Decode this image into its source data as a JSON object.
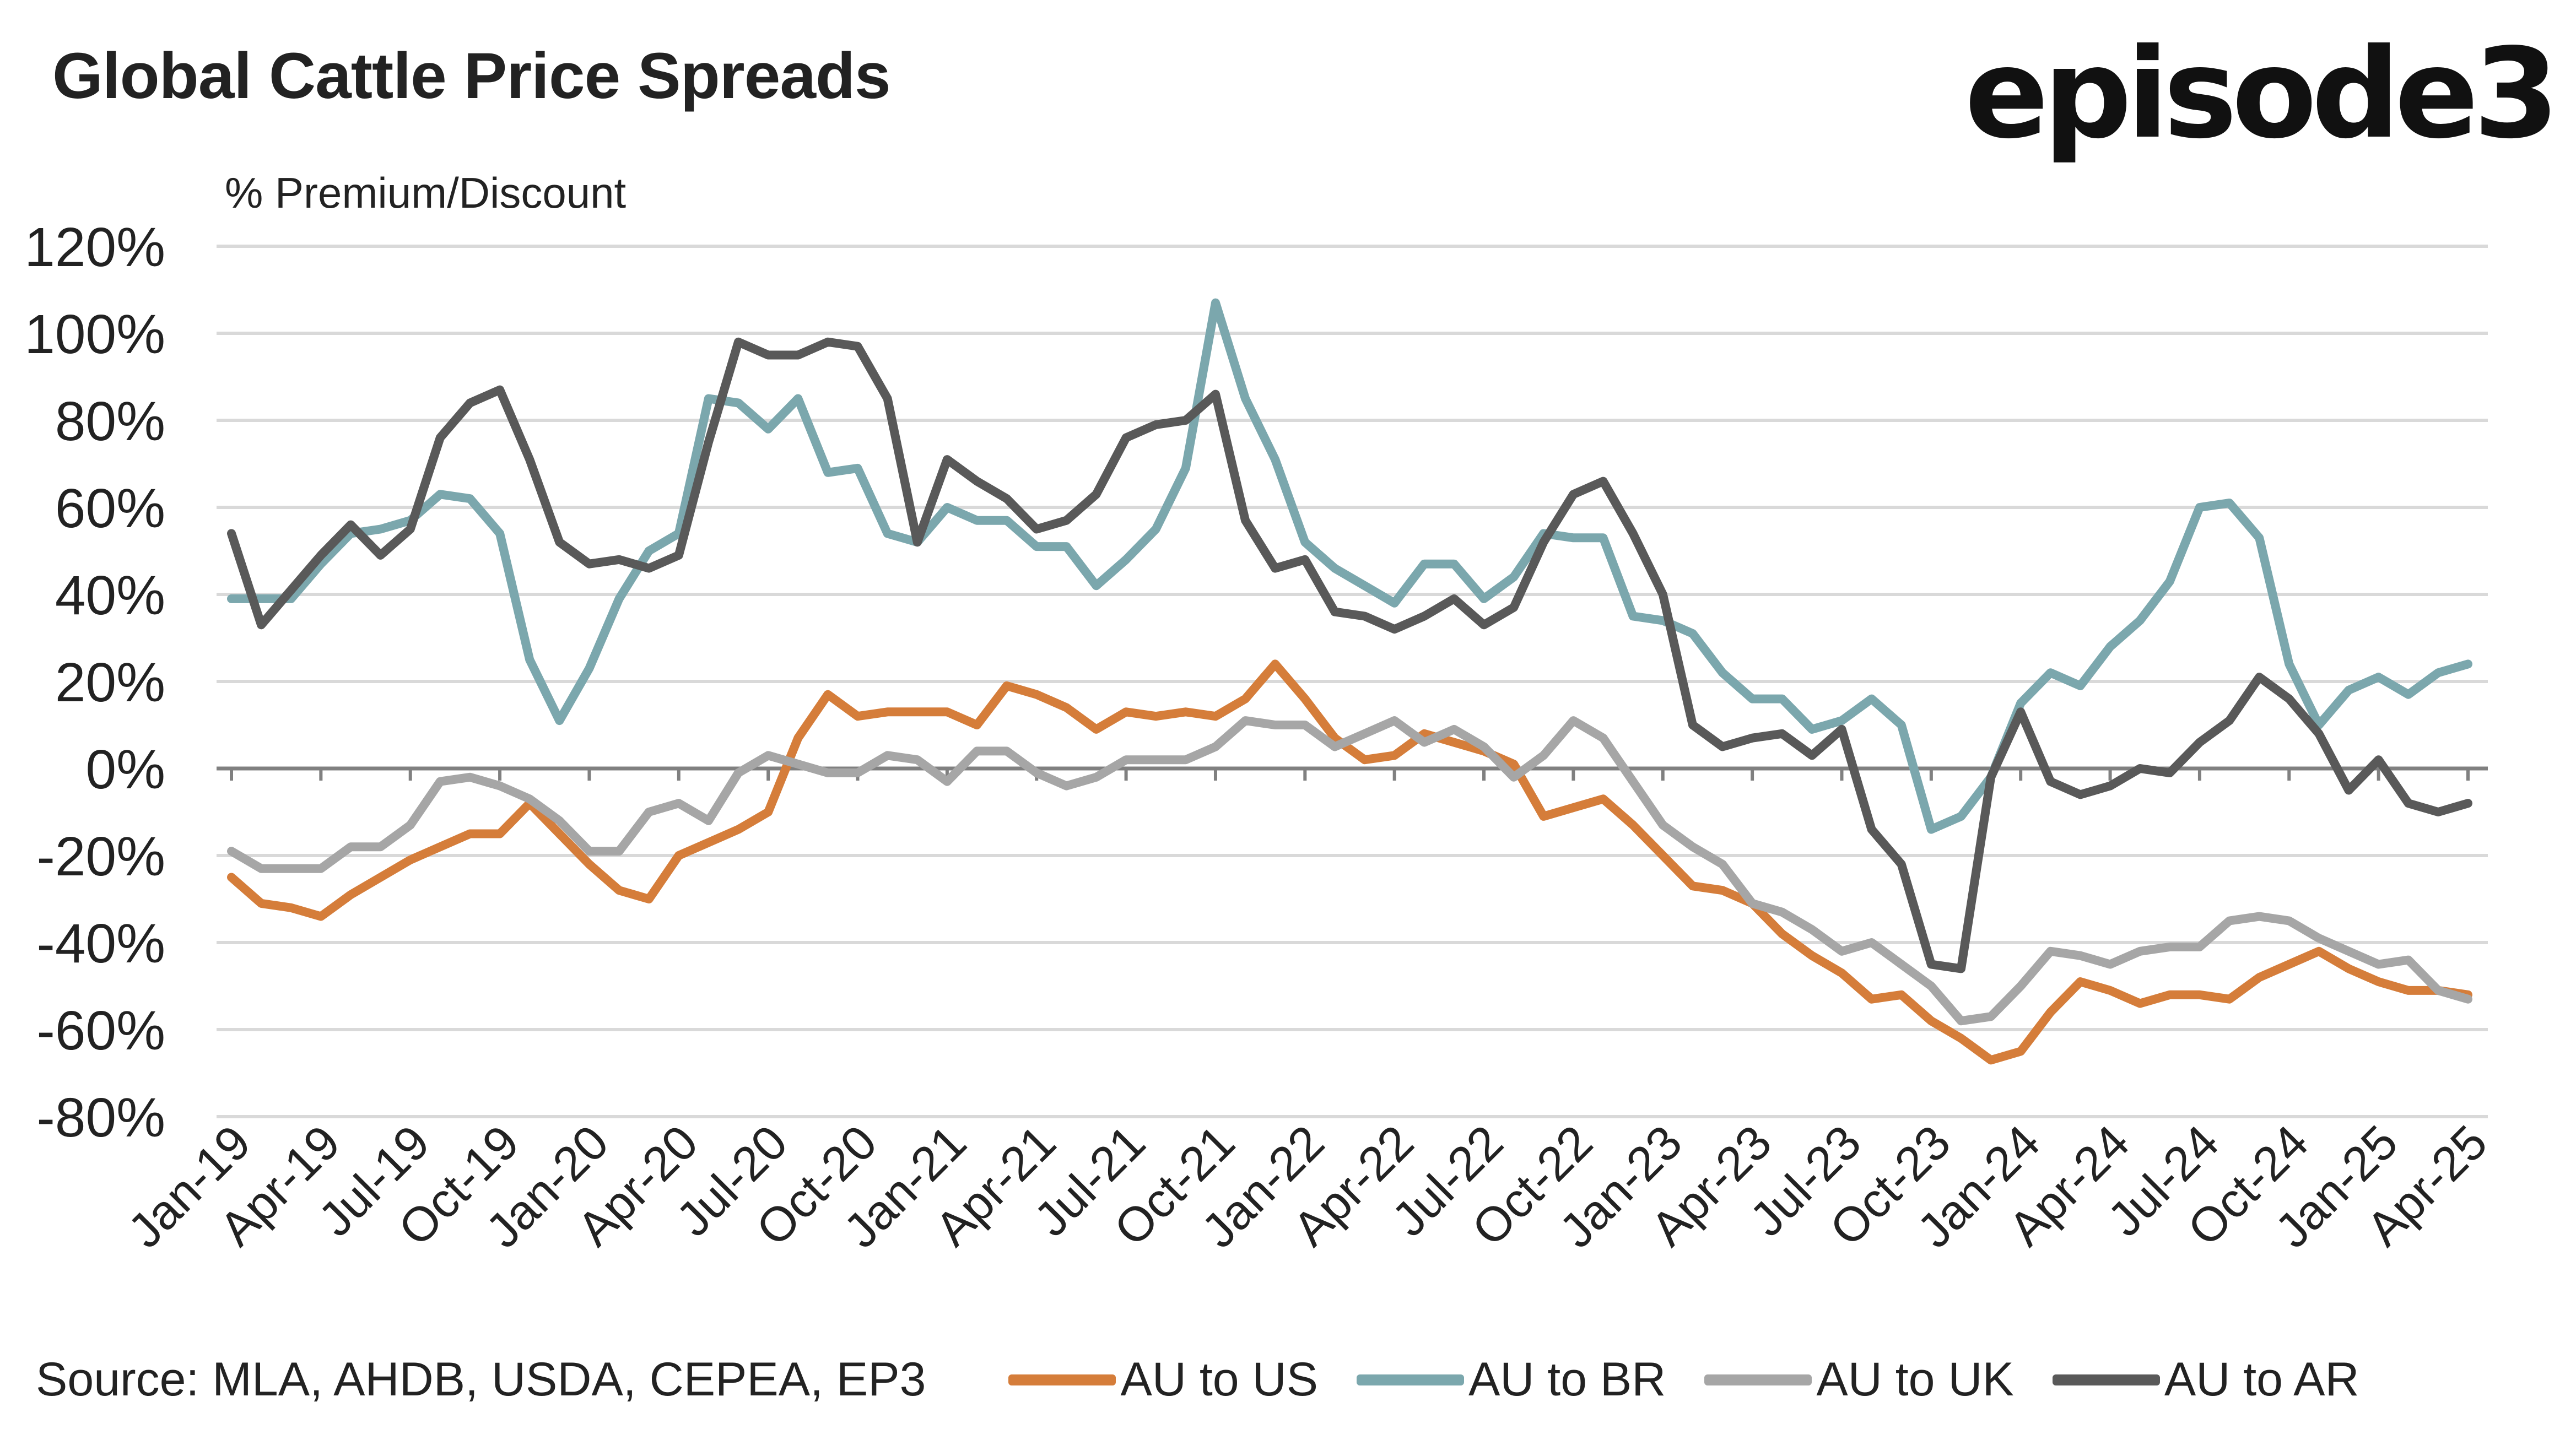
{
  "header": {
    "title": "Global Cattle Price Spreads",
    "logo": "episode3"
  },
  "footer": {
    "source": "Source:  MLA, AHDB, USDA, CEPEA, EP3"
  },
  "chart_data": {
    "type": "line",
    "title": "Global Cattle Price Spreads",
    "ylabel": "% Premium/Discount",
    "xlabel": "",
    "ylim": [
      -80,
      120
    ],
    "y_ticks": [
      "120%",
      "100%",
      "80%",
      "60%",
      "40%",
      "20%",
      "0%",
      "-20%",
      "-40%",
      "-60%",
      "-80%"
    ],
    "y_tick_values": [
      120,
      100,
      80,
      60,
      40,
      20,
      0,
      -20,
      -40,
      -60,
      -80
    ],
    "grid": true,
    "legend_position": "bottom",
    "x_tick_labels": [
      "Jan-19",
      "Apr-19",
      "Jul-19",
      "Oct-19",
      "Jan-20",
      "Apr-20",
      "Jul-20",
      "Oct-20",
      "Jan-21",
      "Apr-21",
      "Jul-21",
      "Oct-21",
      "Jan-22",
      "Apr-22",
      "Jul-22",
      "Oct-22",
      "Jan-23",
      "Apr-23",
      "Jul-23",
      "Oct-23",
      "Jan-24",
      "Apr-24",
      "Jul-24",
      "Oct-24",
      "Jan-25",
      "Apr-25"
    ],
    "x": [
      "Jan-19",
      "Feb-19",
      "Mar-19",
      "Apr-19",
      "May-19",
      "Jun-19",
      "Jul-19",
      "Aug-19",
      "Sep-19",
      "Oct-19",
      "Nov-19",
      "Dec-19",
      "Jan-20",
      "Feb-20",
      "Mar-20",
      "Apr-20",
      "May-20",
      "Jun-20",
      "Jul-20",
      "Aug-20",
      "Sep-20",
      "Oct-20",
      "Nov-20",
      "Dec-20",
      "Jan-21",
      "Feb-21",
      "Mar-21",
      "Apr-21",
      "May-21",
      "Jun-21",
      "Jul-21",
      "Aug-21",
      "Sep-21",
      "Oct-21",
      "Nov-21",
      "Dec-21",
      "Jan-22",
      "Feb-22",
      "Mar-22",
      "Apr-22",
      "May-22",
      "Jun-22",
      "Jul-22",
      "Aug-22",
      "Sep-22",
      "Oct-22",
      "Nov-22",
      "Dec-22",
      "Jan-23",
      "Feb-23",
      "Mar-23",
      "Apr-23",
      "May-23",
      "Jun-23",
      "Jul-23",
      "Aug-23",
      "Sep-23",
      "Oct-23",
      "Nov-23",
      "Dec-23",
      "Jan-24",
      "Feb-24",
      "Mar-24",
      "Apr-24",
      "May-24",
      "Jun-24",
      "Jul-24",
      "Aug-24",
      "Sep-24",
      "Oct-24",
      "Nov-24",
      "Dec-24",
      "Jan-25",
      "Feb-25",
      "Mar-25",
      "Apr-25"
    ],
    "series": [
      {
        "name": "AU to US",
        "color": "#D57D3A",
        "values": [
          -25,
          -31,
          -32,
          -34,
          -29,
          -25,
          -21,
          -18,
          -15,
          -15,
          -8,
          -15,
          -22,
          -28,
          -30,
          -20,
          -17,
          -14,
          -10,
          7,
          17,
          12,
          13,
          13,
          13,
          10,
          19,
          17,
          14,
          9,
          13,
          12,
          13,
          12,
          16,
          24,
          16,
          7,
          2,
          3,
          8,
          6,
          4,
          1,
          -11,
          -9,
          -7,
          -13,
          -20,
          -27,
          -28,
          -31,
          -38,
          -43,
          -47,
          -53,
          -52,
          -58,
          -62,
          -67,
          -65,
          -56,
          -49,
          -51,
          -54,
          -52,
          -52,
          -53,
          -48,
          -45,
          -42,
          -46,
          -49,
          -51,
          -51,
          -52
        ]
      },
      {
        "name": "AU to BR",
        "color": "#7BA7AD",
        "values": [
          39,
          39,
          39,
          47,
          54,
          55,
          57,
          63,
          62,
          54,
          25,
          11,
          23,
          39,
          50,
          54,
          85,
          84,
          78,
          85,
          68,
          69,
          54,
          52,
          60,
          57,
          57,
          51,
          51,
          42,
          48,
          55,
          69,
          107,
          85,
          71,
          52,
          46,
          42,
          38,
          47,
          47,
          39,
          44,
          54,
          53,
          53,
          35,
          34,
          31,
          22,
          16,
          16,
          9,
          11,
          16,
          10,
          -14,
          -11,
          -2,
          15,
          22,
          19,
          28,
          34,
          43,
          60,
          61,
          53,
          24,
          10,
          18,
          21,
          17,
          22,
          24
        ]
      },
      {
        "name": "AU to UK",
        "color": "#A6A6A6",
        "values": [
          -19,
          -23,
          -23,
          -23,
          -18,
          -18,
          -13,
          -3,
          -2,
          -4,
          -7,
          -12,
          -19,
          -19,
          -10,
          -8,
          -12,
          -1,
          3,
          1,
          -1,
          -1,
          3,
          2,
          -3,
          4,
          4,
          -1,
          -4,
          -2,
          2,
          2,
          2,
          5,
          11,
          10,
          10,
          5,
          8,
          11,
          6,
          9,
          5,
          -2,
          3,
          11,
          7,
          -3,
          -13,
          -18,
          -22,
          -31,
          -33,
          -37,
          -42,
          -40,
          -45,
          -50,
          -58,
          -57,
          -50,
          -42,
          -43,
          -45,
          -42,
          -41,
          -41,
          -35,
          -34,
          -35,
          -39,
          -42,
          -45,
          -44,
          -51,
          -53
        ]
      },
      {
        "name": "AU to AR",
        "color": "#595959",
        "values": [
          54,
          33,
          41,
          49,
          56,
          49,
          55,
          76,
          84,
          87,
          71,
          52,
          47,
          48,
          46,
          49,
          75,
          98,
          95,
          95,
          98,
          97,
          85,
          52,
          71,
          66,
          62,
          55,
          57,
          63,
          76,
          79,
          80,
          86,
          57,
          46,
          48,
          36,
          35,
          32,
          35,
          39,
          33,
          37,
          52,
          63,
          66,
          54,
          40,
          10,
          5,
          7,
          8,
          3,
          9,
          -14,
          -22,
          -45,
          -46,
          -2,
          13,
          -3,
          -6,
          -4,
          0,
          -1,
          6,
          11,
          21,
          16,
          8,
          -5,
          2,
          -8,
          -10,
          -8
        ]
      }
    ]
  }
}
